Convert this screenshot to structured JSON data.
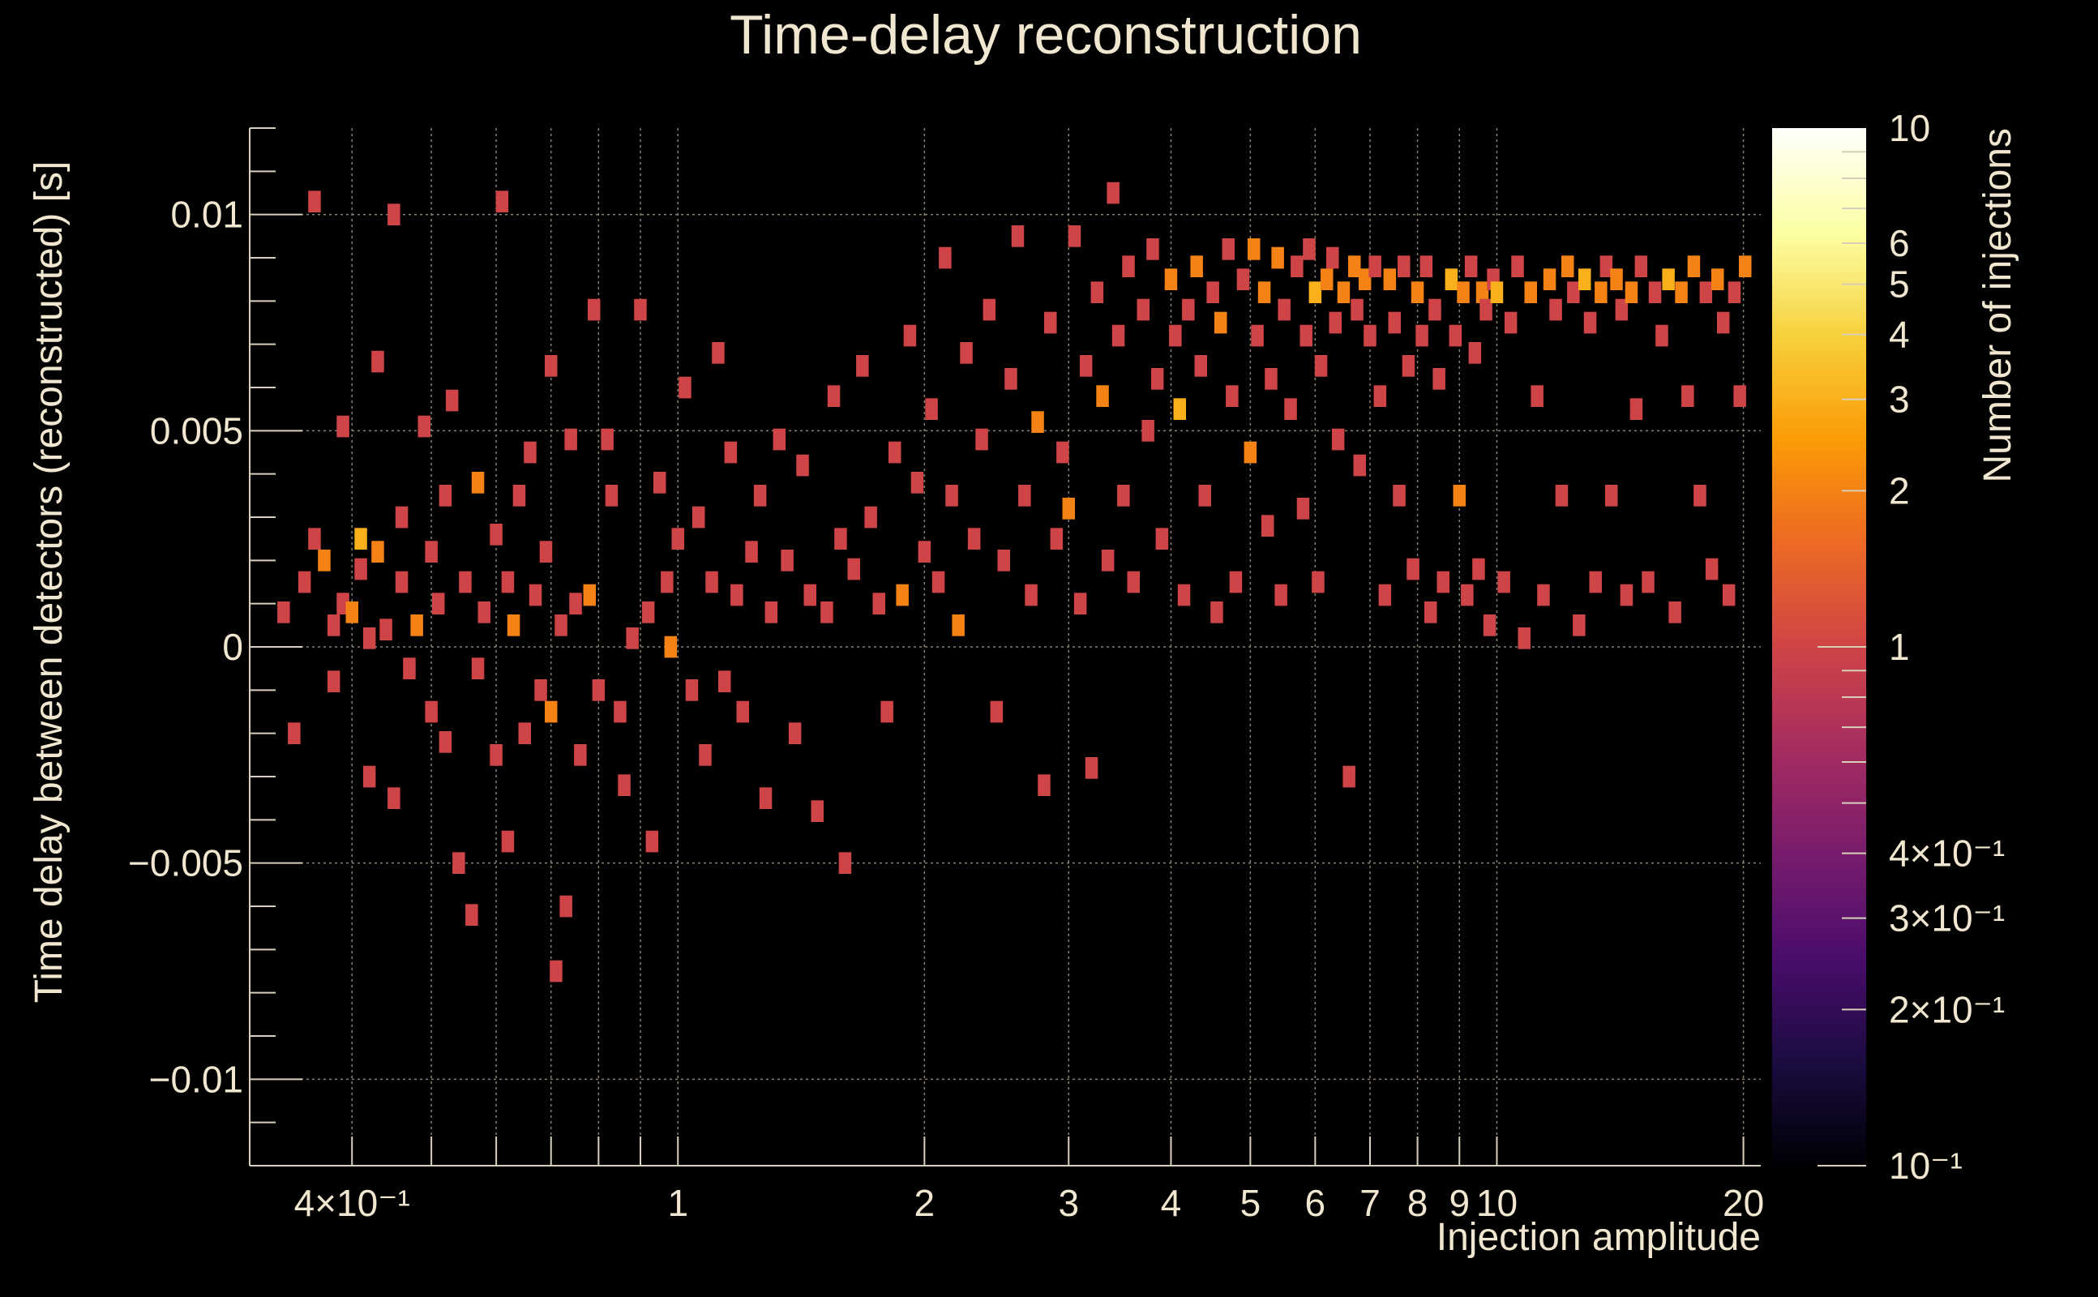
{
  "chart_data": {
    "type": "heatmap",
    "title": "Time-delay reconstruction",
    "xlabel": "Injection amplitude",
    "ylabel": "Time delay between detectors (reconstructed) [s]",
    "zlabel": "Number of injections",
    "x_scale": "log",
    "z_scale": "log",
    "xlim": [
      0.3,
      21
    ],
    "ylim": [
      -0.012,
      0.012
    ],
    "zlim": [
      0.1,
      10
    ],
    "grid": true,
    "x_ticks": [
      {
        "v": 0.4,
        "label": "4×10⁻¹"
      },
      {
        "v": 1,
        "label": "1"
      },
      {
        "v": 2,
        "label": "2"
      },
      {
        "v": 3,
        "label": "3"
      },
      {
        "v": 4,
        "label": "4"
      },
      {
        "v": 5,
        "label": "5"
      },
      {
        "v": 6,
        "label": "6"
      },
      {
        "v": 7,
        "label": "7"
      },
      {
        "v": 8,
        "label": "8"
      },
      {
        "v": 9,
        "label": "9"
      },
      {
        "v": 10,
        "label": "10"
      },
      {
        "v": 20,
        "label": "20"
      }
    ],
    "x_grid": [
      0.4,
      0.5,
      0.6,
      0.7,
      0.8,
      0.9,
      1,
      2,
      3,
      4,
      5,
      6,
      7,
      8,
      9,
      10,
      20
    ],
    "y_ticks": [
      {
        "v": 0.01,
        "label": "0.01"
      },
      {
        "v": 0.005,
        "label": "0.005"
      },
      {
        "v": 0,
        "label": "0"
      },
      {
        "v": -0.005,
        "label": "−0.005"
      },
      {
        "v": -0.01,
        "label": "−0.01"
      }
    ],
    "z_ticks": [
      {
        "v": 10,
        "label": "10"
      },
      {
        "v": 6,
        "label": "6"
      },
      {
        "v": 5,
        "label": "5"
      },
      {
        "v": 4,
        "label": "4"
      },
      {
        "v": 3,
        "label": "3"
      },
      {
        "v": 2,
        "label": "2"
      },
      {
        "v": 1,
        "label": "1"
      },
      {
        "v": 0.4,
        "label": "4×10⁻¹"
      },
      {
        "v": 0.3,
        "label": "3×10⁻¹"
      },
      {
        "v": 0.2,
        "label": "2×10⁻¹"
      },
      {
        "v": 0.1,
        "label": "10⁻¹"
      }
    ],
    "colormap": [
      "#000004",
      "#1b0c41",
      "#4a0c6b",
      "#781c6d",
      "#a52c60",
      "#cf4446",
      "#ed6925",
      "#fb9b06",
      "#f7d13d",
      "#fcffa4",
      "#fffffb"
    ],
    "cells": [
      [
        0.33,
        0.0008,
        1
      ],
      [
        0.34,
        -0.002,
        1
      ],
      [
        0.35,
        0.0015,
        1
      ],
      [
        0.36,
        0.0103,
        1
      ],
      [
        0.36,
        0.0025,
        1
      ],
      [
        0.37,
        0.002,
        2
      ],
      [
        0.38,
        -0.0008,
        1
      ],
      [
        0.38,
        0.0005,
        1
      ],
      [
        0.39,
        0.001,
        1
      ],
      [
        0.39,
        0.0051,
        1
      ],
      [
        0.4,
        0.0008,
        2
      ],
      [
        0.41,
        0.0025,
        3
      ],
      [
        0.41,
        0.0018,
        1
      ],
      [
        0.42,
        -0.003,
        1
      ],
      [
        0.42,
        0.0002,
        1
      ],
      [
        0.43,
        0.0066,
        1
      ],
      [
        0.43,
        0.0022,
        2
      ],
      [
        0.44,
        0.0004,
        1
      ],
      [
        0.45,
        0.01,
        1
      ],
      [
        0.45,
        -0.0035,
        1
      ],
      [
        0.46,
        0.0015,
        1
      ],
      [
        0.46,
        0.003,
        1
      ],
      [
        0.47,
        -0.0005,
        1
      ],
      [
        0.48,
        0.0005,
        2
      ],
      [
        0.49,
        0.0051,
        1
      ],
      [
        0.5,
        -0.0015,
        1
      ],
      [
        0.5,
        0.0022,
        1
      ],
      [
        0.51,
        0.001,
        1
      ],
      [
        0.52,
        -0.0022,
        1
      ],
      [
        0.52,
        0.0035,
        1
      ],
      [
        0.53,
        0.0057,
        1
      ],
      [
        0.54,
        -0.005,
        1
      ],
      [
        0.55,
        0.0015,
        1
      ],
      [
        0.56,
        -0.0062,
        1
      ],
      [
        0.57,
        0.0038,
        2
      ],
      [
        0.57,
        -0.0005,
        1
      ],
      [
        0.58,
        0.0008,
        1
      ],
      [
        0.6,
        0.0026,
        1
      ],
      [
        0.6,
        -0.0025,
        1
      ],
      [
        0.61,
        0.0103,
        1
      ],
      [
        0.62,
        0.0015,
        1
      ],
      [
        0.62,
        -0.0045,
        1
      ],
      [
        0.63,
        0.0005,
        2
      ],
      [
        0.64,
        0.0035,
        1
      ],
      [
        0.65,
        -0.002,
        1
      ],
      [
        0.66,
        0.0045,
        1
      ],
      [
        0.67,
        0.0012,
        1
      ],
      [
        0.68,
        -0.001,
        1
      ],
      [
        0.69,
        0.0022,
        1
      ],
      [
        0.7,
        -0.0015,
        2
      ],
      [
        0.7,
        0.0065,
        1
      ],
      [
        0.71,
        -0.0075,
        1
      ],
      [
        0.72,
        0.0005,
        1
      ],
      [
        0.73,
        -0.006,
        1
      ],
      [
        0.74,
        0.0048,
        1
      ],
      [
        0.75,
        0.001,
        1
      ],
      [
        0.76,
        -0.0025,
        1
      ],
      [
        0.78,
        0.0012,
        2
      ],
      [
        0.79,
        0.0078,
        1
      ],
      [
        0.8,
        -0.001,
        1
      ],
      [
        0.82,
        0.0048,
        1
      ],
      [
        0.83,
        0.0035,
        1
      ],
      [
        0.85,
        -0.0015,
        1
      ],
      [
        0.86,
        -0.0032,
        1
      ],
      [
        0.88,
        0.0002,
        1
      ],
      [
        0.9,
        0.0078,
        1
      ],
      [
        0.92,
        0.0008,
        1
      ],
      [
        0.93,
        -0.0045,
        1
      ],
      [
        0.95,
        0.0038,
        1
      ],
      [
        0.97,
        0.0015,
        1
      ],
      [
        0.98,
        0,
        2
      ],
      [
        1.0,
        0.0025,
        1
      ],
      [
        1.02,
        0.006,
        1
      ],
      [
        1.04,
        -0.001,
        1
      ],
      [
        1.06,
        0.003,
        1
      ],
      [
        1.08,
        -0.0025,
        1
      ],
      [
        1.1,
        0.0015,
        1
      ],
      [
        1.12,
        0.0068,
        1
      ],
      [
        1.14,
        -0.0008,
        1
      ],
      [
        1.16,
        0.0045,
        1
      ],
      [
        1.18,
        0.0012,
        1
      ],
      [
        1.2,
        -0.0015,
        1
      ],
      [
        1.23,
        0.0022,
        1
      ],
      [
        1.26,
        0.0035,
        1
      ],
      [
        1.28,
        -0.0035,
        1
      ],
      [
        1.3,
        0.0008,
        1
      ],
      [
        1.33,
        0.0048,
        1
      ],
      [
        1.36,
        0.002,
        1
      ],
      [
        1.39,
        -0.002,
        1
      ],
      [
        1.42,
        0.0042,
        1
      ],
      [
        1.45,
        0.0012,
        1
      ],
      [
        1.48,
        -0.0038,
        1
      ],
      [
        1.52,
        0.0008,
        1
      ],
      [
        1.55,
        0.0058,
        1
      ],
      [
        1.58,
        0.0025,
        1
      ],
      [
        1.6,
        -0.005,
        1
      ],
      [
        1.64,
        0.0018,
        1
      ],
      [
        1.68,
        0.0065,
        1
      ],
      [
        1.72,
        0.003,
        1
      ],
      [
        1.76,
        0.001,
        1
      ],
      [
        1.8,
        -0.0015,
        1
      ],
      [
        1.84,
        0.0045,
        1
      ],
      [
        1.88,
        0.0012,
        2
      ],
      [
        1.92,
        0.0072,
        1
      ],
      [
        1.96,
        0.0038,
        1
      ],
      [
        2.0,
        0.0022,
        1
      ],
      [
        2.04,
        0.0055,
        1
      ],
      [
        2.08,
        0.0015,
        1
      ],
      [
        2.12,
        0.009,
        1
      ],
      [
        2.16,
        0.0035,
        1
      ],
      [
        2.2,
        0.0005,
        2
      ],
      [
        2.25,
        0.0068,
        1
      ],
      [
        2.3,
        0.0025,
        1
      ],
      [
        2.35,
        0.0048,
        1
      ],
      [
        2.4,
        0.0078,
        1
      ],
      [
        2.45,
        -0.0015,
        1
      ],
      [
        2.5,
        0.002,
        1
      ],
      [
        2.55,
        0.0062,
        1
      ],
      [
        2.6,
        0.0095,
        1
      ],
      [
        2.65,
        0.0035,
        1
      ],
      [
        2.7,
        0.0012,
        1
      ],
      [
        2.75,
        0.0052,
        2
      ],
      [
        2.8,
        -0.0032,
        1
      ],
      [
        2.85,
        0.0075,
        1
      ],
      [
        2.9,
        0.0025,
        1
      ],
      [
        2.95,
        0.0045,
        1
      ],
      [
        3.0,
        0.0032,
        2
      ],
      [
        3.05,
        0.0095,
        1
      ],
      [
        3.1,
        0.001,
        1
      ],
      [
        3.15,
        0.0065,
        1
      ],
      [
        3.2,
        -0.0028,
        1
      ],
      [
        3.25,
        0.0082,
        1
      ],
      [
        3.3,
        0.0058,
        2
      ],
      [
        3.35,
        0.002,
        1
      ],
      [
        3.4,
        0.0105,
        1
      ],
      [
        3.45,
        0.0072,
        1
      ],
      [
        3.5,
        0.0035,
        1
      ],
      [
        3.55,
        0.0088,
        1
      ],
      [
        3.6,
        0.0015,
        1
      ],
      [
        3.7,
        0.0078,
        1
      ],
      [
        3.75,
        0.005,
        1
      ],
      [
        3.8,
        0.0092,
        1
      ],
      [
        3.85,
        0.0062,
        1
      ],
      [
        3.9,
        0.0025,
        1
      ],
      [
        4.0,
        0.0085,
        2
      ],
      [
        4.05,
        0.0072,
        1
      ],
      [
        4.1,
        0.0055,
        3
      ],
      [
        4.15,
        0.0012,
        1
      ],
      [
        4.2,
        0.0078,
        1
      ],
      [
        4.3,
        0.0088,
        2
      ],
      [
        4.35,
        0.0065,
        1
      ],
      [
        4.4,
        0.0035,
        1
      ],
      [
        4.5,
        0.0082,
        1
      ],
      [
        4.55,
        0.0008,
        1
      ],
      [
        4.6,
        0.0075,
        2
      ],
      [
        4.7,
        0.0092,
        1
      ],
      [
        4.75,
        0.0058,
        1
      ],
      [
        4.8,
        0.0015,
        1
      ],
      [
        4.9,
        0.0085,
        1
      ],
      [
        5.0,
        0.0045,
        2
      ],
      [
        5.05,
        0.0092,
        2
      ],
      [
        5.1,
        0.0072,
        1
      ],
      [
        5.2,
        0.0082,
        2
      ],
      [
        5.25,
        0.0028,
        1
      ],
      [
        5.3,
        0.0062,
        1
      ],
      [
        5.4,
        0.009,
        2
      ],
      [
        5.45,
        0.0012,
        1
      ],
      [
        5.5,
        0.0078,
        1
      ],
      [
        5.6,
        0.0055,
        1
      ],
      [
        5.7,
        0.0088,
        1
      ],
      [
        5.8,
        0.0032,
        1
      ],
      [
        5.85,
        0.0072,
        1
      ],
      [
        5.9,
        0.0092,
        1
      ],
      [
        6.0,
        0.0082,
        3
      ],
      [
        6.05,
        0.0015,
        1
      ],
      [
        6.1,
        0.0065,
        1
      ],
      [
        6.2,
        0.0085,
        2
      ],
      [
        6.3,
        0.009,
        1
      ],
      [
        6.35,
        0.0075,
        1
      ],
      [
        6.4,
        0.0048,
        1
      ],
      [
        6.5,
        0.0082,
        2
      ],
      [
        6.6,
        -0.003,
        1
      ],
      [
        6.7,
        0.0088,
        2
      ],
      [
        6.75,
        0.0078,
        1
      ],
      [
        6.8,
        0.0042,
        1
      ],
      [
        6.9,
        0.0085,
        2
      ],
      [
        7.0,
        0.0072,
        1
      ],
      [
        7.1,
        0.0088,
        1
      ],
      [
        7.2,
        0.0058,
        1
      ],
      [
        7.3,
        0.0012,
        1
      ],
      [
        7.4,
        0.0085,
        2
      ],
      [
        7.5,
        0.0075,
        1
      ],
      [
        7.6,
        0.0035,
        1
      ],
      [
        7.7,
        0.0088,
        1
      ],
      [
        7.8,
        0.0065,
        1
      ],
      [
        7.9,
        0.0018,
        1
      ],
      [
        8.0,
        0.0082,
        2
      ],
      [
        8.1,
        0.0072,
        1
      ],
      [
        8.2,
        0.0088,
        1
      ],
      [
        8.3,
        0.0008,
        1
      ],
      [
        8.4,
        0.0078,
        1
      ],
      [
        8.5,
        0.0062,
        1
      ],
      [
        8.6,
        0.0015,
        1
      ],
      [
        8.8,
        0.0085,
        3
      ],
      [
        8.9,
        0.0072,
        1
      ],
      [
        9.0,
        0.0035,
        2
      ],
      [
        9.1,
        0.0082,
        2
      ],
      [
        9.2,
        0.0012,
        1
      ],
      [
        9.3,
        0.0088,
        1
      ],
      [
        9.4,
        0.0068,
        1
      ],
      [
        9.5,
        0.0018,
        1
      ],
      [
        9.6,
        0.0082,
        2
      ],
      [
        9.7,
        0.0078,
        1
      ],
      [
        9.8,
        0.0005,
        1
      ],
      [
        9.9,
        0.0085,
        1
      ],
      [
        10.0,
        0.0082,
        3
      ],
      [
        10.2,
        0.0015,
        1
      ],
      [
        10.4,
        0.0075,
        1
      ],
      [
        10.6,
        0.0088,
        1
      ],
      [
        10.8,
        0.0002,
        1
      ],
      [
        11.0,
        0.0082,
        2
      ],
      [
        11.2,
        0.0058,
        1
      ],
      [
        11.4,
        0.0012,
        1
      ],
      [
        11.6,
        0.0085,
        2
      ],
      [
        11.8,
        0.0078,
        1
      ],
      [
        12.0,
        0.0035,
        1
      ],
      [
        12.2,
        0.0088,
        2
      ],
      [
        12.4,
        0.0082,
        1
      ],
      [
        12.6,
        0.0005,
        1
      ],
      [
        12.8,
        0.0085,
        3
      ],
      [
        13.0,
        0.0075,
        1
      ],
      [
        13.2,
        0.0015,
        1
      ],
      [
        13.4,
        0.0082,
        2
      ],
      [
        13.6,
        0.0088,
        1
      ],
      [
        13.8,
        0.0035,
        1
      ],
      [
        14.0,
        0.0085,
        2
      ],
      [
        14.2,
        0.0078,
        1
      ],
      [
        14.4,
        0.0012,
        1
      ],
      [
        14.6,
        0.0082,
        2
      ],
      [
        14.8,
        0.0055,
        1
      ],
      [
        15.0,
        0.0088,
        1
      ],
      [
        15.3,
        0.0015,
        1
      ],
      [
        15.6,
        0.0082,
        1
      ],
      [
        15.9,
        0.0072,
        1
      ],
      [
        16.2,
        0.0085,
        3
      ],
      [
        16.5,
        0.0008,
        1
      ],
      [
        16.8,
        0.0082,
        2
      ],
      [
        17.1,
        0.0058,
        1
      ],
      [
        17.4,
        0.0088,
        2
      ],
      [
        17.7,
        0.0035,
        1
      ],
      [
        18.0,
        0.0082,
        1
      ],
      [
        18.3,
        0.0018,
        1
      ],
      [
        18.6,
        0.0085,
        2
      ],
      [
        18.9,
        0.0075,
        1
      ],
      [
        19.2,
        0.0012,
        1
      ],
      [
        19.5,
        0.0082,
        1
      ],
      [
        19.8,
        0.0058,
        1
      ],
      [
        20.1,
        0.0088,
        2
      ]
    ]
  }
}
